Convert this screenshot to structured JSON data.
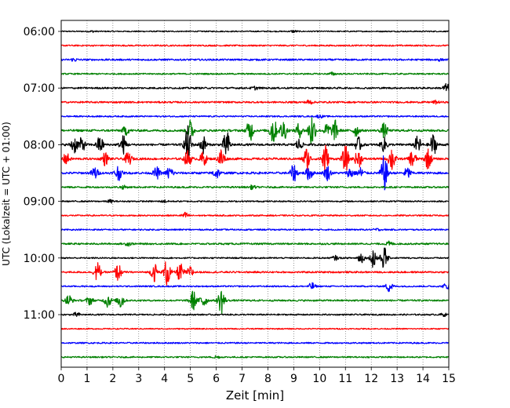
{
  "chart_data": {
    "type": "line",
    "title": "",
    "xlabel": "Zeit  [min]",
    "ylabel": "UTC (Lokalzeit = UTC + 01:00)",
    "xlim": [
      0,
      15
    ],
    "x_ticks": [
      "0",
      "1",
      "2",
      "3",
      "4",
      "5",
      "6",
      "7",
      "8",
      "9",
      "10",
      "11",
      "12",
      "13",
      "14",
      "15"
    ],
    "y_ticks": [
      "06:00",
      "07:00",
      "08:00",
      "09:00",
      "10:00",
      "11:00"
    ],
    "grid": "vertical dotted",
    "colors": [
      "#000000",
      "#ff0000",
      "#0000ff",
      "#008000"
    ],
    "trace_start_time": "06:00",
    "trace_interval_min": 15,
    "trace_window_min": 15,
    "traces": [
      {
        "time": "06:00",
        "color": "#000000",
        "level": 0.08,
        "events": [
          [
            9.0,
            0.15
          ],
          [
            1.2,
            0.1
          ]
        ]
      },
      {
        "time": "06:15",
        "color": "#ff0000",
        "level": 0.1,
        "events": []
      },
      {
        "time": "06:30",
        "color": "#0000ff",
        "level": 0.12,
        "events": [
          [
            0.5,
            0.2
          ],
          [
            14.6,
            0.15
          ]
        ]
      },
      {
        "time": "06:45",
        "color": "#008000",
        "level": 0.1,
        "events": [
          [
            10.5,
            0.2
          ]
        ]
      },
      {
        "time": "07:00",
        "color": "#000000",
        "level": 0.12,
        "events": [
          [
            14.9,
            0.6
          ],
          [
            7.5,
            0.2
          ]
        ]
      },
      {
        "time": "07:15",
        "color": "#ff0000",
        "level": 0.12,
        "events": [
          [
            9.6,
            0.3
          ],
          [
            14.5,
            0.2
          ]
        ]
      },
      {
        "time": "07:30",
        "color": "#0000ff",
        "level": 0.1,
        "events": [
          [
            10.0,
            0.2
          ]
        ]
      },
      {
        "time": "07:45",
        "color": "#008000",
        "level": 0.15,
        "events": [
          [
            2.5,
            0.6
          ],
          [
            5.0,
            1.5
          ],
          [
            7.3,
            1.6
          ],
          [
            8.2,
            2.2
          ],
          [
            8.6,
            1.6
          ],
          [
            9.2,
            1.0
          ],
          [
            9.7,
            2.6
          ],
          [
            10.3,
            1.0
          ],
          [
            10.6,
            1.4
          ],
          [
            11.4,
            0.8
          ],
          [
            12.5,
            1.0
          ]
        ]
      },
      {
        "time": "08:00",
        "color": "#000000",
        "level": 0.15,
        "events": [
          [
            0.5,
            1.2
          ],
          [
            0.8,
            1.0
          ],
          [
            1.5,
            1.2
          ],
          [
            2.4,
            1.3
          ],
          [
            4.9,
            2.6
          ],
          [
            5.5,
            1.2
          ],
          [
            6.4,
            2.0
          ],
          [
            9.2,
            0.8
          ],
          [
            11.5,
            1.0
          ],
          [
            12.5,
            1.0
          ],
          [
            13.8,
            1.2
          ],
          [
            14.4,
            1.5
          ]
        ]
      },
      {
        "time": "08:15",
        "color": "#ff0000",
        "level": 0.15,
        "events": [
          [
            0.2,
            0.8
          ],
          [
            1.7,
            0.9
          ],
          [
            2.6,
            0.9
          ],
          [
            4.9,
            1.2
          ],
          [
            5.5,
            1.0
          ],
          [
            6.2,
            1.5
          ],
          [
            9.5,
            1.6
          ],
          [
            10.2,
            2.3
          ],
          [
            11.0,
            1.8
          ],
          [
            11.5,
            1.3
          ],
          [
            12.8,
            1.8
          ],
          [
            13.6,
            1.3
          ],
          [
            14.2,
            1.4
          ]
        ]
      },
      {
        "time": "08:30",
        "color": "#0000ff",
        "level": 0.15,
        "events": [
          [
            1.3,
            0.9
          ],
          [
            2.2,
            1.1
          ],
          [
            3.7,
            0.8
          ],
          [
            4.2,
            1.0
          ],
          [
            6.0,
            0.8
          ],
          [
            9.0,
            1.2
          ],
          [
            9.6,
            1.0
          ],
          [
            10.3,
            1.0
          ],
          [
            11.2,
            0.8
          ],
          [
            11.6,
            0.8
          ],
          [
            12.5,
            2.5
          ],
          [
            13.4,
            0.8
          ]
        ]
      },
      {
        "time": "08:45",
        "color": "#008000",
        "level": 0.12,
        "events": [
          [
            2.4,
            0.2
          ],
          [
            7.4,
            0.25
          ]
        ]
      },
      {
        "time": "09:00",
        "color": "#000000",
        "level": 0.1,
        "events": [
          [
            1.9,
            0.2
          ],
          [
            4.0,
            0.15
          ]
        ]
      },
      {
        "time": "09:15",
        "color": "#ff0000",
        "level": 0.1,
        "events": [
          [
            4.8,
            0.4
          ]
        ]
      },
      {
        "time": "09:30",
        "color": "#0000ff",
        "level": 0.1,
        "events": [
          [
            12.2,
            0.15
          ]
        ]
      },
      {
        "time": "09:45",
        "color": "#008000",
        "level": 0.12,
        "events": [
          [
            2.6,
            0.25
          ],
          [
            12.7,
            0.3
          ]
        ]
      },
      {
        "time": "10:00",
        "color": "#000000",
        "level": 0.1,
        "events": [
          [
            11.6,
            0.8
          ],
          [
            12.1,
            1.5
          ],
          [
            12.5,
            1.6
          ],
          [
            10.6,
            0.3
          ]
        ]
      },
      {
        "time": "10:15",
        "color": "#ff0000",
        "level": 0.12,
        "events": [
          [
            1.4,
            1.4
          ],
          [
            2.2,
            1.2
          ],
          [
            3.6,
            1.3
          ],
          [
            4.1,
            2.0
          ],
          [
            4.6,
            1.3
          ],
          [
            5.0,
            0.8
          ]
        ]
      },
      {
        "time": "10:30",
        "color": "#0000ff",
        "level": 0.1,
        "events": [
          [
            9.7,
            0.5
          ],
          [
            12.7,
            0.8
          ],
          [
            14.9,
            0.4
          ]
        ]
      },
      {
        "time": "10:45",
        "color": "#008000",
        "level": 0.12,
        "events": [
          [
            0.3,
            0.8
          ],
          [
            1.1,
            0.6
          ],
          [
            1.8,
            1.0
          ],
          [
            2.3,
            1.2
          ],
          [
            5.1,
            1.4
          ],
          [
            5.5,
            1.2
          ],
          [
            6.2,
            1.9
          ]
        ]
      },
      {
        "time": "11:00",
        "color": "#000000",
        "level": 0.1,
        "events": [
          [
            0.6,
            0.3
          ],
          [
            14.8,
            0.2
          ]
        ]
      },
      {
        "time": "11:15",
        "color": "#ff0000",
        "level": 0.08,
        "events": []
      },
      {
        "time": "11:30",
        "color": "#0000ff",
        "level": 0.1,
        "events": []
      },
      {
        "time": "11:45",
        "color": "#008000",
        "level": 0.1,
        "events": [
          [
            6.0,
            0.2
          ]
        ]
      }
    ]
  }
}
